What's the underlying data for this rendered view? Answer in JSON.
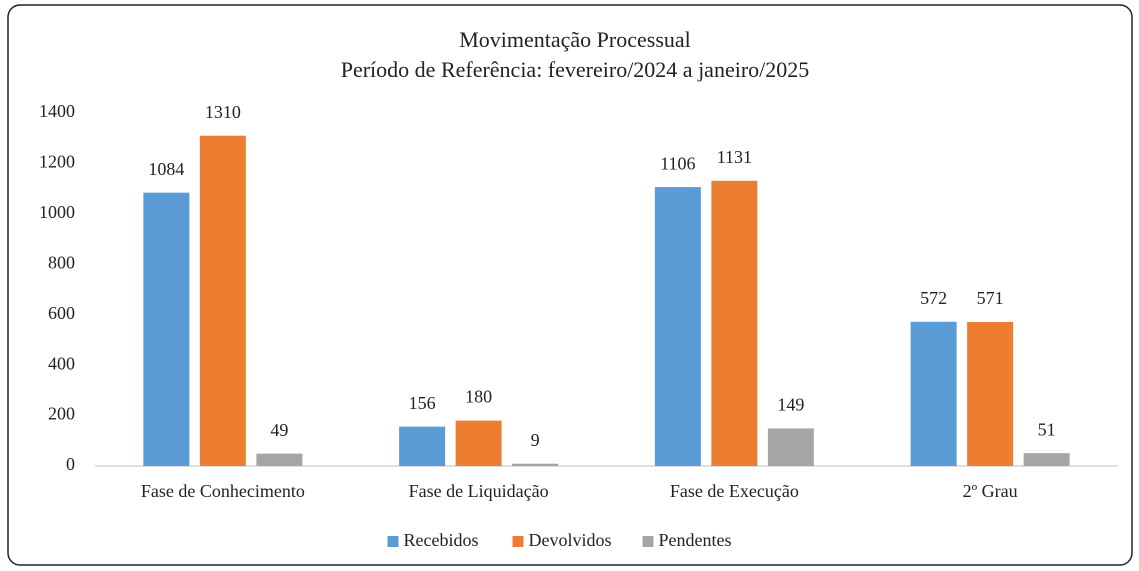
{
  "chart_data": {
    "type": "bar",
    "title": "Movimentação Processual",
    "subtitle": "Período de Referência: fevereiro/2024 a janeiro/2025",
    "categories": [
      "Fase de Conhecimento",
      "Fase de Liquidação",
      "Fase de Execução",
      "2º Grau"
    ],
    "series": [
      {
        "name": "Recebidos",
        "color": "#5b9bd5",
        "values": [
          1084,
          156,
          1106,
          572
        ]
      },
      {
        "name": "Devolvidos",
        "color": "#ed7d31",
        "values": [
          1310,
          180,
          1131,
          571
        ]
      },
      {
        "name": "Pendentes",
        "color": "#a5a5a5",
        "values": [
          49,
          9,
          149,
          51
        ]
      }
    ],
    "ylim": [
      0,
      1400
    ],
    "yticks": [
      0,
      200,
      400,
      600,
      800,
      1000,
      1200,
      1400
    ],
    "grid": false,
    "legend": "bottom"
  }
}
